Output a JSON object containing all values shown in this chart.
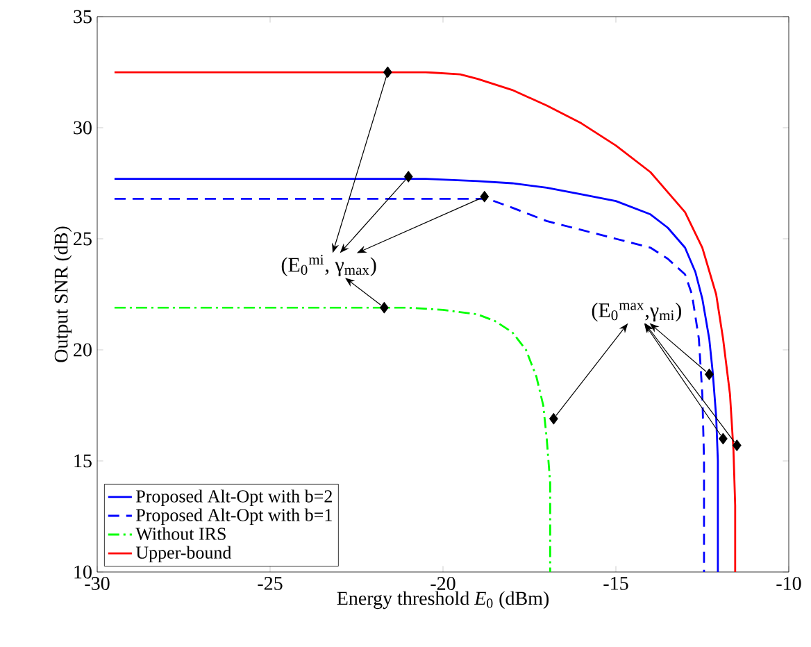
{
  "chart_data": {
    "type": "line",
    "xlabel": "Energy threshold *E*$_{0}$ (dBm)",
    "ylabel": "Output SNR (dB)",
    "xlim": [
      -30,
      -10
    ],
    "ylim": [
      10,
      35
    ],
    "xticks": [
      -30,
      -25,
      -20,
      -15,
      -10
    ],
    "yticks": [
      10,
      15,
      20,
      25,
      30,
      35
    ],
    "legend": "bottom left",
    "series": [
      {
        "name": "Proposed Alt-Opt with b=2",
        "color": "#0000ff",
        "line_style": "solid",
        "x": [
          -29.5,
          -25,
          -20.5,
          -19,
          -18,
          -17,
          -16,
          -15,
          -14,
          -13.5,
          -13,
          -12.7,
          -12.5,
          -12.3,
          -12.2,
          -12.1,
          -12.05,
          -12.05
        ],
        "values": [
          27.7,
          27.7,
          27.7,
          27.6,
          27.5,
          27.3,
          27.0,
          26.7,
          26.1,
          25.5,
          24.6,
          23.5,
          22.3,
          20.5,
          19.0,
          17.0,
          15.0,
          10
        ]
      },
      {
        "name": "Proposed Alt-Opt with b=1",
        "color": "#0000ff",
        "line_style": "dashed",
        "x": [
          -29.5,
          -25,
          -18.7,
          -18,
          -17,
          -16,
          -15,
          -14,
          -13.5,
          -13,
          -12.8,
          -12.6,
          -12.5,
          -12.45,
          -12.45
        ],
        "values": [
          26.8,
          26.8,
          26.8,
          26.4,
          25.8,
          25.4,
          25.0,
          24.6,
          24.1,
          23.4,
          22.5,
          20.5,
          18.0,
          15.0,
          10
        ]
      },
      {
        "name": "Without IRS",
        "color": "#00ff00",
        "line_style": "dashdot",
        "x": [
          -29.5,
          -25,
          -21,
          -20,
          -19,
          -18.5,
          -18,
          -17.6,
          -17.3,
          -17.1,
          -17.0,
          -16.9,
          -16.9
        ],
        "values": [
          21.9,
          21.9,
          21.9,
          21.8,
          21.6,
          21.3,
          20.8,
          20.0,
          18.8,
          17.5,
          16.0,
          14.0,
          10
        ]
      },
      {
        "name": "Upper-bound",
        "color": "#ff0000",
        "line_style": "solid",
        "x": [
          -29.5,
          -25,
          -20.5,
          -19.5,
          -19,
          -18,
          -17,
          -16,
          -15,
          -14,
          -13,
          -12.5,
          -12.1,
          -11.9,
          -11.7,
          -11.6,
          -11.55,
          -11.55
        ],
        "values": [
          32.5,
          32.5,
          32.5,
          32.4,
          32.2,
          31.7,
          31.0,
          30.2,
          29.2,
          28.0,
          26.2,
          24.6,
          22.5,
          20.5,
          18.0,
          15.5,
          13.0,
          10
        ]
      },
      {
        "type": "scatter",
        "color": "#000000",
        "marker": "diamond",
        "x": [
          -21.6,
          -21.0,
          -18.8,
          -21.7,
          -16.8,
          -12.3,
          -11.9,
          -11.5
        ],
        "values": [
          32.5,
          27.8,
          26.9,
          21.9,
          16.9,
          18.9,
          16.0,
          15.7
        ]
      }
    ],
    "annotations": [
      {
        "text": "(E$_{0}$$^{mi}$, γ$_{max}$)",
        "x": -21.0,
        "y": 27.8
      },
      {
        "text": "(E$_{0}$$^{max}$,γ$_{mi}$)",
        "x": -11.9,
        "y": 16.0
      }
    ]
  }
}
